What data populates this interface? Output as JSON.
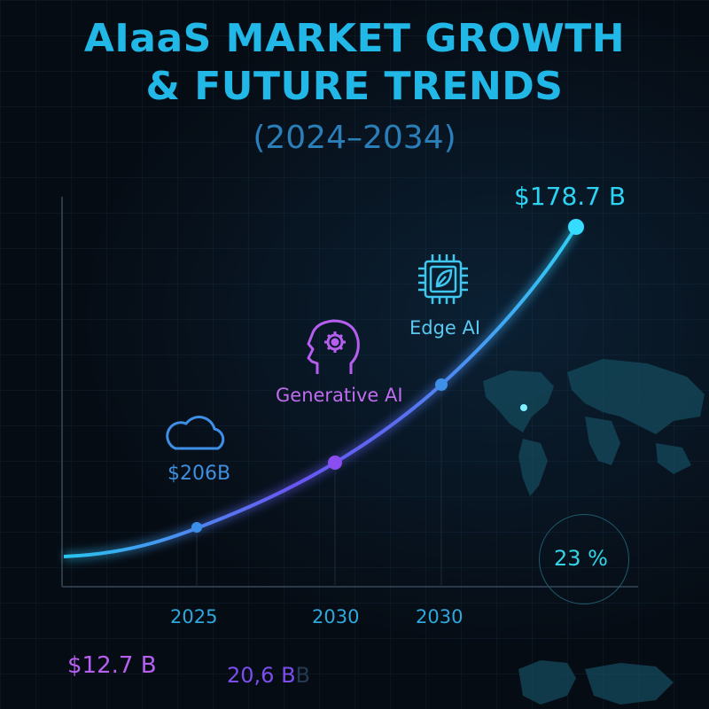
{
  "header": {
    "title_line1": "AIaaS MARKET GROWTH",
    "title_line2": "& FUTURE TRENDS",
    "subtitle": "(2024–2034)"
  },
  "chart_data": {
    "type": "line",
    "title": "AIaaS MARKET GROWTH & FUTURE TRENDS",
    "subtitle": "(2024–2034)",
    "x_tick_labels": [
      "2025",
      "2030",
      "2030"
    ],
    "annotations": [
      {
        "label": "$206B",
        "icon": "cloud-icon"
      },
      {
        "label": "Generative AI",
        "icon": "head-gear-icon"
      },
      {
        "label": "Edge AI",
        "icon": "chip-leaf-icon"
      }
    ],
    "end_value_label": "$178.7 B",
    "cagr_label": "23 %",
    "bottom_labels": [
      "$12.7 B",
      "20,6 B"
    ],
    "colors": {
      "start": "#2bc9f0",
      "mid": "#7b4ef0",
      "end": "#2fd0f4",
      "accent_purple": "#b65ef0"
    }
  }
}
